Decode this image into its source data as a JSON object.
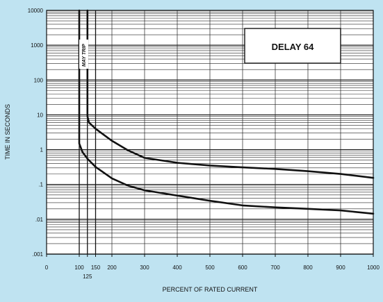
{
  "chart_data": {
    "type": "line",
    "title": "DELAY 64",
    "xlabel": "PERCENT OF RATED CURRENT",
    "ylabel": "TIME IN SECONDS",
    "annotation": "MAY TRIP",
    "xlim": [
      0,
      1000
    ],
    "ylim": [
      0.001,
      10000
    ],
    "y_scale": "log",
    "grid": true,
    "x_ticks": [
      {
        "value": 0,
        "label": "0"
      },
      {
        "value": 100,
        "label": "100"
      },
      {
        "value": 150,
        "label": "150"
      },
      {
        "value": 200,
        "label": "200"
      },
      {
        "value": 300,
        "label": "300"
      },
      {
        "value": 400,
        "label": "400"
      },
      {
        "value": 500,
        "label": "500"
      },
      {
        "value": 600,
        "label": "600"
      },
      {
        "value": 700,
        "label": "700"
      },
      {
        "value": 800,
        "label": "800"
      },
      {
        "value": 900,
        "label": "900"
      },
      {
        "value": 1000,
        "label": "1000"
      }
    ],
    "x_sub_tick": {
      "value": 125,
      "label": "125"
    },
    "y_ticks": [
      {
        "value": 10000,
        "label": "10000"
      },
      {
        "value": 1000,
        "label": "1000"
      },
      {
        "value": 100,
        "label": "100"
      },
      {
        "value": 10,
        "label": "10"
      },
      {
        "value": 1,
        "label": "1"
      },
      {
        "value": 0.1,
        "label": ".1"
      },
      {
        "value": 0.01,
        "label": ".01"
      },
      {
        "value": 0.001,
        "label": ".001"
      }
    ],
    "series": [
      {
        "x": [
          100,
          100,
          110,
          125,
          150,
          200,
          250,
          300,
          400,
          500,
          600,
          700,
          800,
          900,
          1000
        ],
        "y": [
          10000,
          1.5,
          0.85,
          0.55,
          0.32,
          0.15,
          0.092,
          0.068,
          0.048,
          0.034,
          0.025,
          0.022,
          0.02,
          0.018,
          0.0145
        ]
      },
      {
        "x": [
          125,
          125,
          130,
          150,
          200,
          250,
          300,
          400,
          500,
          600,
          700,
          800,
          900,
          1000
        ],
        "y": [
          10000,
          9,
          6,
          4,
          1.8,
          0.95,
          0.58,
          0.42,
          0.35,
          0.31,
          0.28,
          0.24,
          0.2,
          0.155
        ]
      }
    ],
    "vertical_lines": [
      100,
      125,
      150
    ]
  }
}
